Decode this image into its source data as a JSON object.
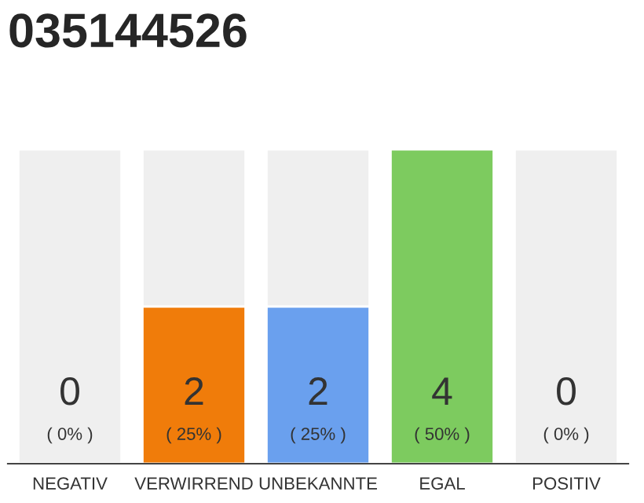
{
  "chart_data": {
    "type": "bar",
    "title": "035144526",
    "categories": [
      "NEGATIV",
      "VERWIRREND",
      "UNBEKANNTE",
      "EGAL",
      "POSITIV"
    ],
    "values": [
      0,
      2,
      2,
      4,
      0
    ],
    "colors": [
      "#efefef",
      "#f07c0a",
      "#6aa0ee",
      "#7dcb5f",
      "#efefef"
    ],
    "ylim": [
      0,
      4
    ],
    "data_labels": true,
    "grid": false,
    "legend": false,
    "annotations": [
      {
        "text": "( 0% )",
        "x": "NEGATIV",
        "y": 0
      },
      {
        "text": "( 25% )",
        "x": "VERWIRREND",
        "y": 0
      },
      {
        "text": "( 25% )",
        "x": "UNBEKANNTE",
        "y": 0
      },
      {
        "text": "( 50% )",
        "x": "EGAL",
        "y": 0
      },
      {
        "text": "( 0% )",
        "x": "POSITIV",
        "y": 0
      }
    ]
  }
}
